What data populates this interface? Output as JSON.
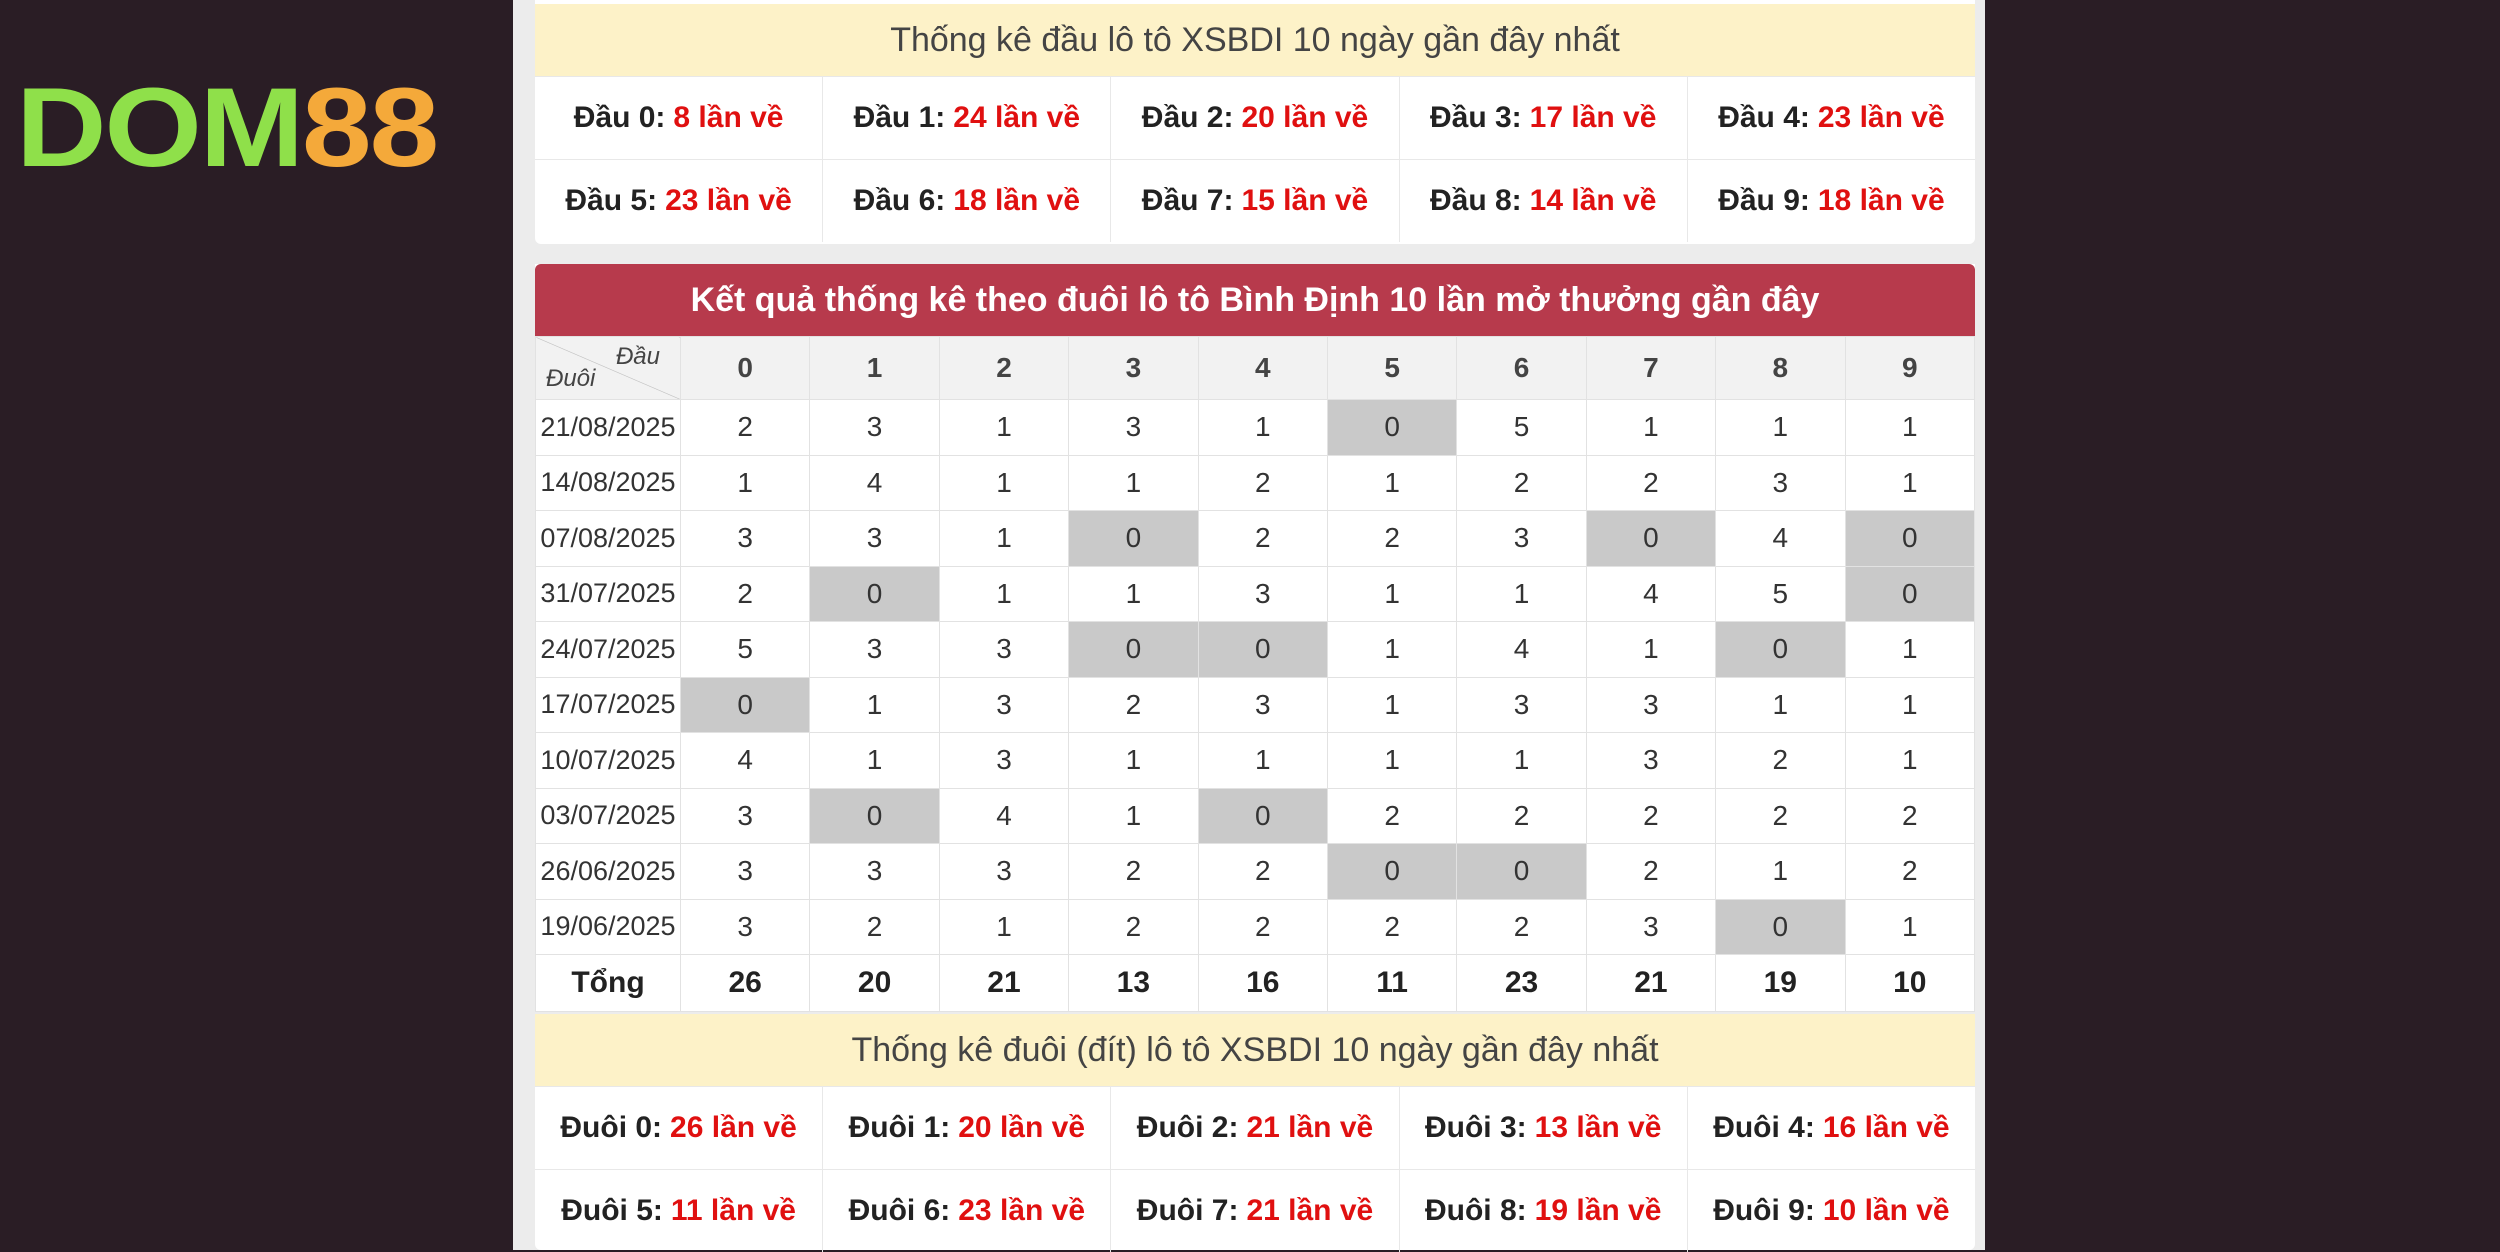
{
  "logo": {
    "part1": "DOM",
    "part2": "88"
  },
  "head_summary": {
    "title": "Thống kê đầu lô tô XSBDI 10 ngày gần đây nhất",
    "items": [
      {
        "label": "Đầu 0:",
        "count": "8 lần về"
      },
      {
        "label": "Đầu 1:",
        "count": "24 lần về"
      },
      {
        "label": "Đầu 2:",
        "count": "20 lần về"
      },
      {
        "label": "Đầu 3:",
        "count": "17 lần về"
      },
      {
        "label": "Đầu 4:",
        "count": "23 lần về"
      },
      {
        "label": "Đầu 5:",
        "count": "23 lần về"
      },
      {
        "label": "Đầu 6:",
        "count": "18 lần về"
      },
      {
        "label": "Đầu 7:",
        "count": "15 lần về"
      },
      {
        "label": "Đầu 8:",
        "count": "14 lần về"
      },
      {
        "label": "Đầu 9:",
        "count": "18 lần về"
      }
    ]
  },
  "table": {
    "title": "Kết quả thống kê theo đuôi lô tô Bình Định 10 lần mở thưởng gần đây",
    "corner_top": "Đầu",
    "corner_bottom": "Đuôi",
    "columns": [
      "0",
      "1",
      "2",
      "3",
      "4",
      "5",
      "6",
      "7",
      "8",
      "9"
    ],
    "rows": [
      {
        "date": "21/08/2025",
        "values": [
          "2",
          "3",
          "1",
          "3",
          "1",
          "0",
          "5",
          "1",
          "1",
          "1"
        ]
      },
      {
        "date": "14/08/2025",
        "values": [
          "1",
          "4",
          "1",
          "1",
          "2",
          "1",
          "2",
          "2",
          "3",
          "1"
        ]
      },
      {
        "date": "07/08/2025",
        "values": [
          "3",
          "3",
          "1",
          "0",
          "2",
          "2",
          "3",
          "0",
          "4",
          "0"
        ]
      },
      {
        "date": "31/07/2025",
        "values": [
          "2",
          "0",
          "1",
          "1",
          "3",
          "1",
          "1",
          "4",
          "5",
          "0"
        ]
      },
      {
        "date": "24/07/2025",
        "values": [
          "5",
          "3",
          "3",
          "0",
          "0",
          "1",
          "4",
          "1",
          "0",
          "1"
        ]
      },
      {
        "date": "17/07/2025",
        "values": [
          "0",
          "1",
          "3",
          "2",
          "3",
          "1",
          "3",
          "3",
          "1",
          "1"
        ]
      },
      {
        "date": "10/07/2025",
        "values": [
          "4",
          "1",
          "3",
          "1",
          "1",
          "1",
          "1",
          "3",
          "2",
          "1"
        ]
      },
      {
        "date": "03/07/2025",
        "values": [
          "3",
          "0",
          "4",
          "1",
          "0",
          "2",
          "2",
          "2",
          "2",
          "2"
        ]
      },
      {
        "date": "26/06/2025",
        "values": [
          "3",
          "3",
          "3",
          "2",
          "2",
          "0",
          "0",
          "2",
          "1",
          "2"
        ]
      },
      {
        "date": "19/06/2025",
        "values": [
          "3",
          "2",
          "1",
          "2",
          "2",
          "2",
          "2",
          "3",
          "0",
          "1"
        ]
      }
    ],
    "total_label": "Tổng",
    "totals": [
      "26",
      "20",
      "21",
      "13",
      "16",
      "11",
      "23",
      "21",
      "19",
      "10"
    ]
  },
  "tail_summary": {
    "title": "Thống kê đuôi (đít) lô tô XSBDI 10 ngày gần đây nhất",
    "items": [
      {
        "label": "Đuôi 0:",
        "count": "26 lần về"
      },
      {
        "label": "Đuôi 1:",
        "count": "20 lần về"
      },
      {
        "label": "Đuôi 2:",
        "count": "21 lần về"
      },
      {
        "label": "Đuôi 3:",
        "count": "13 lần về"
      },
      {
        "label": "Đuôi 4:",
        "count": "16 lần về"
      },
      {
        "label": "Đuôi 5:",
        "count": "11 lần về"
      },
      {
        "label": "Đuôi 6:",
        "count": "23 lần về"
      },
      {
        "label": "Đuôi 7:",
        "count": "21 lần về"
      },
      {
        "label": "Đuôi 8:",
        "count": "19 lần về"
      },
      {
        "label": "Đuôi 9:",
        "count": "10 lần về"
      }
    ]
  },
  "colors": {
    "background": "#2a1d25",
    "header_red": "#b73a4c",
    "count_red": "#e01010",
    "title_yellow": "#fdf2c8",
    "zero_gray": "#c9c9c9"
  }
}
